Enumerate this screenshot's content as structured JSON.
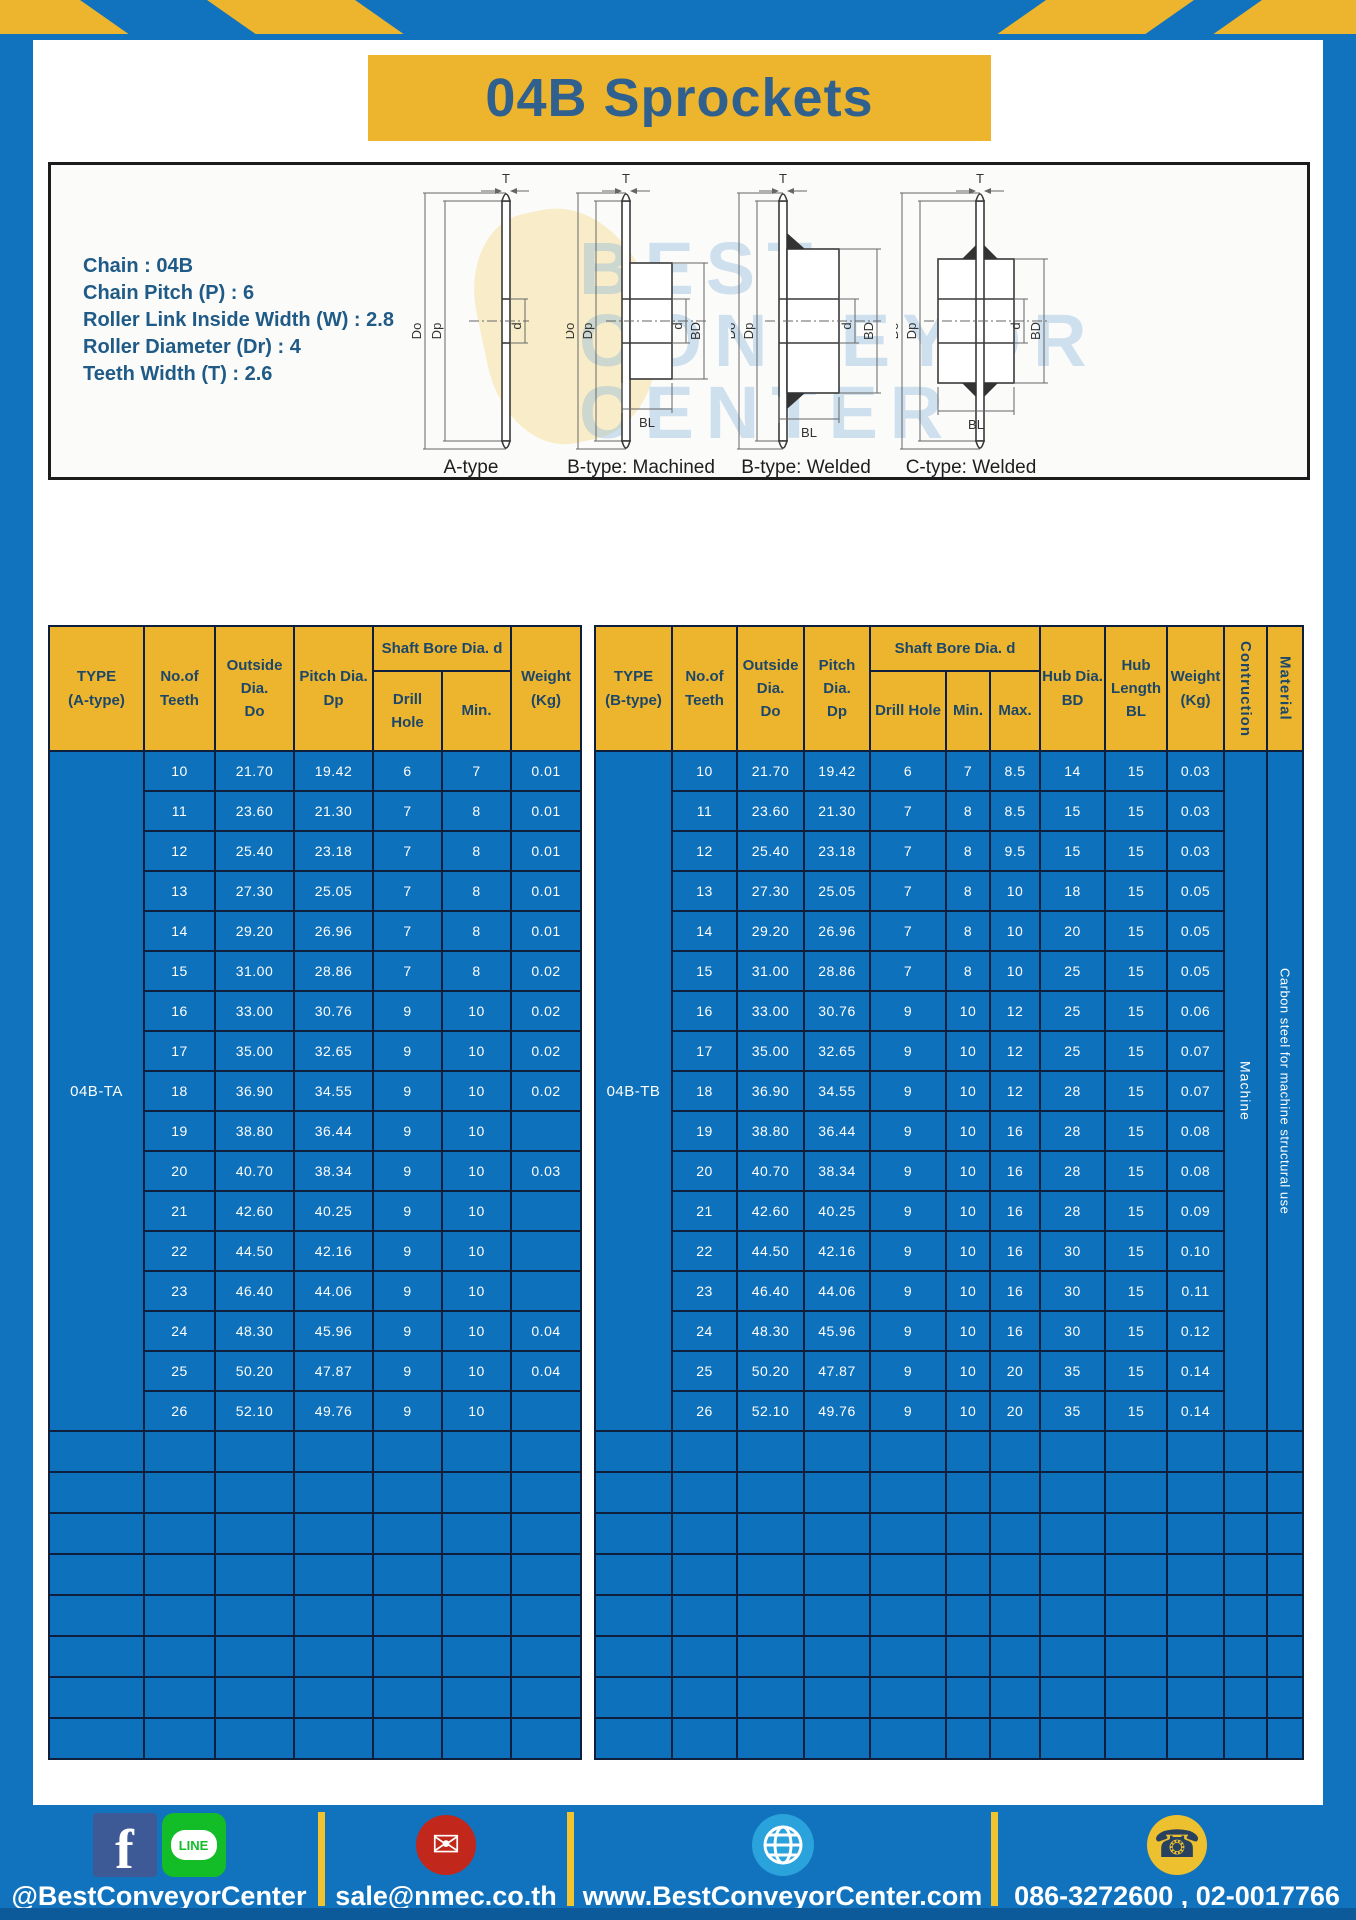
{
  "title": "04B Sprockets",
  "specs": {
    "lines": [
      "Chain : 04B",
      "Chain Pitch (P) : 6",
      "Roller Link Inside Width (W) : 2.8",
      "Roller Diameter (Dr) : 4",
      "Teeth Width (T) : 2.6"
    ]
  },
  "diagram": {
    "watermark": "BEST\nCONVEYOR\nCENTER",
    "captions": {
      "a": "A-type",
      "b_machined": "B-type: Machined",
      "b_welded": "B-type: Welded",
      "c_welded": "C-type: Welded"
    },
    "dims": {
      "t": "T",
      "do": "Do",
      "dp": "Dp",
      "d": "d",
      "bd": "BD",
      "bl": "BL"
    }
  },
  "table_a": {
    "header": {
      "type": "TYPE\n(A-type)",
      "teeth": "No.of\nTeeth",
      "outside": "Outside\nDia.\nDo",
      "pitch": "Pitch Dia.\nDp",
      "shaft_bore": "Shaft Bore Dia. d",
      "drill_hole": "Drill Hole",
      "min": "Min.",
      "weight": "Weight\n(Kg)"
    },
    "type_label": "04B-TA",
    "rows": [
      [
        "10",
        "21.70",
        "19.42",
        "6",
        "7",
        "0.01"
      ],
      [
        "11",
        "23.60",
        "21.30",
        "7",
        "8",
        "0.01"
      ],
      [
        "12",
        "25.40",
        "23.18",
        "7",
        "8",
        "0.01"
      ],
      [
        "13",
        "27.30",
        "25.05",
        "7",
        "8",
        "0.01"
      ],
      [
        "14",
        "29.20",
        "26.96",
        "7",
        "8",
        "0.01"
      ],
      [
        "15",
        "31.00",
        "28.86",
        "7",
        "8",
        "0.02"
      ],
      [
        "16",
        "33.00",
        "30.76",
        "9",
        "10",
        "0.02"
      ],
      [
        "17",
        "35.00",
        "32.65",
        "9",
        "10",
        "0.02"
      ],
      [
        "18",
        "36.90",
        "34.55",
        "9",
        "10",
        "0.02"
      ],
      [
        "19",
        "38.80",
        "36.44",
        "9",
        "10",
        ""
      ],
      [
        "20",
        "40.70",
        "38.34",
        "9",
        "10",
        "0.03"
      ],
      [
        "21",
        "42.60",
        "40.25",
        "9",
        "10",
        ""
      ],
      [
        "22",
        "44.50",
        "42.16",
        "9",
        "10",
        ""
      ],
      [
        "23",
        "46.40",
        "44.06",
        "9",
        "10",
        ""
      ],
      [
        "24",
        "48.30",
        "45.96",
        "9",
        "10",
        "0.04"
      ],
      [
        "25",
        "50.20",
        "47.87",
        "9",
        "10",
        "0.04"
      ],
      [
        "26",
        "52.10",
        "49.76",
        "9",
        "10",
        ""
      ]
    ],
    "empty_rows": 8,
    "empty_row_cells": 7
  },
  "table_b": {
    "header": {
      "type": "TYPE\n(B-type)",
      "teeth": "No.of\nTeeth",
      "outside": "Outside\nDia.\nDo",
      "pitch": "Pitch Dia.\nDp",
      "shaft_bore": "Shaft Bore Dia. d",
      "drill_hole": "Drill Hole",
      "min": "Min.",
      "max": "Max.",
      "hub_dia": "Hub Dia.\nBD",
      "hub_length": "Hub\nLength\nBL",
      "weight": "Weight\n(Kg)",
      "construction": "Contruction",
      "material": "Material"
    },
    "type_label": "04B-TB",
    "construction_value": "Machine",
    "material_value": "Carbon steel for machine structural use",
    "rows": [
      [
        "10",
        "21.70",
        "19.42",
        "6",
        "7",
        "8.5",
        "14",
        "15",
        "0.03"
      ],
      [
        "11",
        "23.60",
        "21.30",
        "7",
        "8",
        "8.5",
        "15",
        "15",
        "0.03"
      ],
      [
        "12",
        "25.40",
        "23.18",
        "7",
        "8",
        "9.5",
        "15",
        "15",
        "0.03"
      ],
      [
        "13",
        "27.30",
        "25.05",
        "7",
        "8",
        "10",
        "18",
        "15",
        "0.05"
      ],
      [
        "14",
        "29.20",
        "26.96",
        "7",
        "8",
        "10",
        "20",
        "15",
        "0.05"
      ],
      [
        "15",
        "31.00",
        "28.86",
        "7",
        "8",
        "10",
        "25",
        "15",
        "0.05"
      ],
      [
        "16",
        "33.00",
        "30.76",
        "9",
        "10",
        "12",
        "25",
        "15",
        "0.06"
      ],
      [
        "17",
        "35.00",
        "32.65",
        "9",
        "10",
        "12",
        "25",
        "15",
        "0.07"
      ],
      [
        "18",
        "36.90",
        "34.55",
        "9",
        "10",
        "12",
        "28",
        "15",
        "0.07"
      ],
      [
        "19",
        "38.80",
        "36.44",
        "9",
        "10",
        "16",
        "28",
        "15",
        "0.08"
      ],
      [
        "20",
        "40.70",
        "38.34",
        "9",
        "10",
        "16",
        "28",
        "15",
        "0.08"
      ],
      [
        "21",
        "42.60",
        "40.25",
        "9",
        "10",
        "16",
        "28",
        "15",
        "0.09"
      ],
      [
        "22",
        "44.50",
        "42.16",
        "9",
        "10",
        "16",
        "30",
        "15",
        "0.10"
      ],
      [
        "23",
        "46.40",
        "44.06",
        "9",
        "10",
        "16",
        "30",
        "15",
        "0.11"
      ],
      [
        "24",
        "48.30",
        "45.96",
        "9",
        "10",
        "16",
        "30",
        "15",
        "0.12"
      ],
      [
        "25",
        "50.20",
        "47.87",
        "9",
        "10",
        "20",
        "35",
        "15",
        "0.14"
      ],
      [
        "26",
        "52.10",
        "49.76",
        "9",
        "10",
        "20",
        "35",
        "15",
        "0.14"
      ]
    ],
    "empty_rows": 8,
    "empty_row_cells": 12
  },
  "footer": {
    "social_handle": "@BestConveyorCenter",
    "facebook_letter": "f",
    "line_label": "LINE",
    "email": "sale@nmec.co.th",
    "website": "www.BestConveyorCenter.com",
    "phone": "086-3272600 , 02-0017766"
  },
  "colors": {
    "frame_blue": "#1173bd",
    "banner_yellow": "#edb42d",
    "table_cell_blue": "#0e71bc",
    "header_text_navy": "#1d4769",
    "title_navy": "#30608e",
    "divider_yellow": "#f0c42e",
    "facebook_blue": "#3d5a96",
    "line_green": "#12bd28",
    "email_red": "#c2271b",
    "globe_blue": "#2aa2dc",
    "phone_yellow": "#edc02f"
  }
}
